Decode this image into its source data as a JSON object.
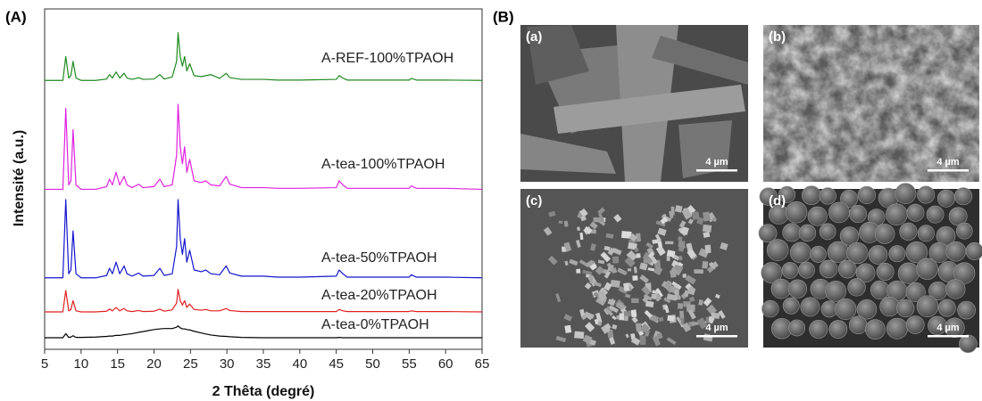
{
  "figure": {
    "panel_a": "(A)",
    "panel_b": "(B)"
  },
  "images": [
    {
      "label": "(a)",
      "scale": "4 µm"
    },
    {
      "label": "(b)",
      "scale": "4 µm"
    },
    {
      "label": "(c)",
      "scale": "4 µm"
    },
    {
      "label": "(d)",
      "scale": "4 µm"
    }
  ],
  "chart_data": {
    "type": "line",
    "x_label": "2 Thêta (degré)",
    "y_label": "Intensité (a.u.)",
    "xlim": [
      5,
      65
    ],
    "xticks": [
      5,
      10,
      15,
      20,
      25,
      30,
      35,
      40,
      45,
      50,
      55,
      60,
      65
    ],
    "ylim": [
      0,
      100
    ],
    "x": [
      5,
      7.5,
      7.9,
      8.3,
      8.6,
      8.9,
      9.3,
      10,
      12,
      13.5,
      13.9,
      14.3,
      14.8,
      15.3,
      15.9,
      16.3,
      17,
      17.9,
      18.5,
      20,
      20.8,
      21.4,
      22.5,
      23.1,
      23.3,
      23.6,
      23.9,
      24.2,
      24.5,
      24.9,
      25.5,
      26.5,
      27.1,
      27.8,
      29,
      29.9,
      30.4,
      32,
      35,
      37,
      40,
      45,
      45.4,
      45.9,
      46.5,
      50,
      55,
      55.3,
      56,
      60,
      65
    ],
    "series": [
      {
        "name": "A-REF-100%TPAOH",
        "color": "#1f8a1f",
        "values": [
          79,
          79,
          86,
          79.7,
          80.4,
          84.6,
          79.7,
          79,
          79,
          79.4,
          80.7,
          79.7,
          81.5,
          79.7,
          81.1,
          79.7,
          79.3,
          79.8,
          79.3,
          79.4,
          80.7,
          79.4,
          80,
          84.6,
          93,
          86,
          83.2,
          86,
          81.8,
          83.9,
          80.4,
          80.1,
          80.4,
          80.7,
          79.6,
          81.1,
          79.8,
          79.3,
          79.3,
          79.1,
          79.1,
          79.3,
          80.4,
          79.7,
          79.1,
          79.1,
          79.1,
          79.6,
          79.1,
          79.1,
          79
        ]
      },
      {
        "name": "A-tea-100%TPAOH",
        "color": "#e020e0",
        "values": [
          47,
          47,
          70.8,
          48.3,
          49.5,
          64.5,
          48.3,
          47,
          47,
          47.8,
          50,
          48.3,
          52,
          48.3,
          50.8,
          48.3,
          47.5,
          48.5,
          47.5,
          47.8,
          50,
          47.8,
          48.3,
          57,
          72,
          59.5,
          54.5,
          59.5,
          52,
          55.8,
          49.5,
          49,
          49.5,
          48.3,
          48,
          50.8,
          48.5,
          47.5,
          47.5,
          47.3,
          47.3,
          47.5,
          49.5,
          48.3,
          47.3,
          47.3,
          47.3,
          48,
          47.3,
          47.3,
          47
        ]
      },
      {
        "name": "A-tea-50%TPAOH",
        "color": "#1515cc",
        "values": [
          21,
          21,
          44,
          22.2,
          23.3,
          34.8,
          22.2,
          21,
          21,
          21.7,
          23.8,
          22.2,
          25.6,
          22.2,
          24.5,
          22.2,
          21.5,
          22.4,
          21.5,
          21.7,
          23.8,
          21.7,
          22.2,
          30.2,
          44,
          32.5,
          27.9,
          32.5,
          25.6,
          29.1,
          23.3,
          22.8,
          23.3,
          22.2,
          21.9,
          24.5,
          22.4,
          21.5,
          21.5,
          21.2,
          21.2,
          21.5,
          23.3,
          22.2,
          21.2,
          21.2,
          21.2,
          21.9,
          21.2,
          21.2,
          21
        ]
      },
      {
        "name": "A-tea-20%TPAOH",
        "color": "#e02020",
        "values": [
          11,
          11,
          17.3,
          11.3,
          11.7,
          14.3,
          11.3,
          11,
          11,
          11.2,
          11.8,
          11.3,
          12.3,
          11.3,
          12,
          11.3,
          11.1,
          11.4,
          11.1,
          11.2,
          11.8,
          11.2,
          11.6,
          13.6,
          17.6,
          14.3,
          13,
          14.3,
          12.3,
          13.3,
          11.7,
          11.5,
          11.7,
          11.3,
          11.3,
          12,
          11.4,
          11.1,
          11.1,
          11.1,
          11.1,
          11.1,
          11.7,
          11.3,
          11.1,
          11.1,
          11.1,
          11.3,
          11.1,
          11.1,
          11
        ]
      },
      {
        "name": "A-tea-0%TPAOH",
        "color": "#000000",
        "values": [
          3.4,
          3.4,
          4.6,
          3.5,
          3.6,
          4,
          3.5,
          3.5,
          3.6,
          3.8,
          3.9,
          3.9,
          4.1,
          4.1,
          4.3,
          4.4,
          4.6,
          5,
          5.2,
          5.8,
          6,
          6.1,
          6.1,
          6.5,
          6.9,
          6.3,
          6,
          6,
          5.8,
          5.7,
          5.3,
          4.8,
          4.5,
          4.2,
          3.9,
          3.8,
          3.7,
          3.5,
          3.4,
          3.4,
          3.4,
          3.4,
          3.5,
          3.4,
          3.4,
          3.4,
          3.4,
          3.4,
          3.4,
          3.4,
          3.4
        ]
      }
    ]
  }
}
